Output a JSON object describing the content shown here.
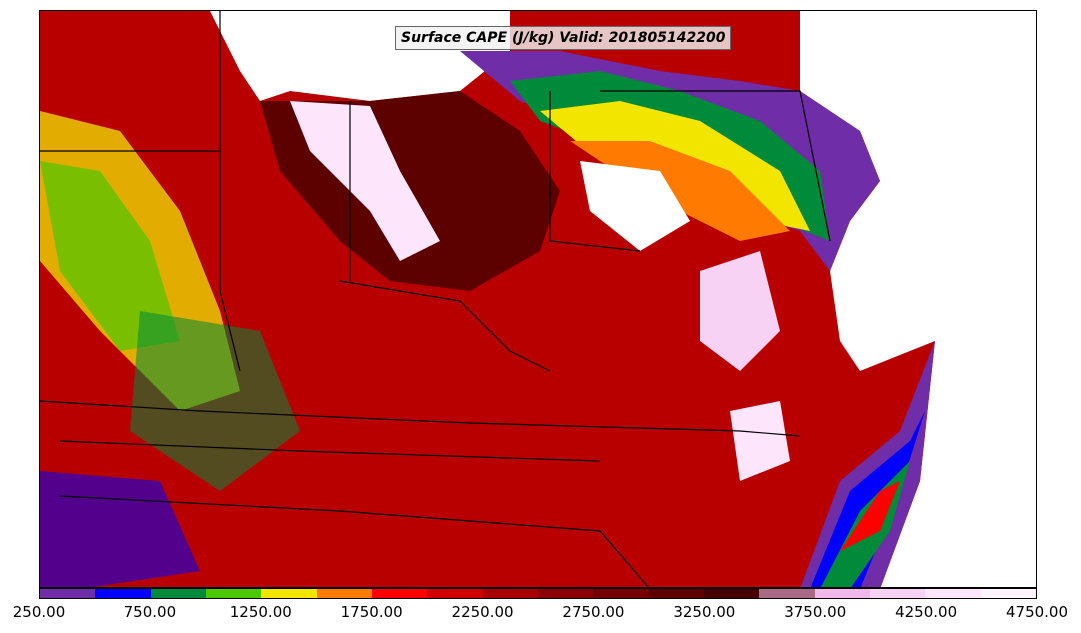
{
  "title": "Surface CAPE (J/kg) Valid: 201805142200",
  "colorbar": {
    "bins": [
      {
        "value": 250,
        "color": "#6f2da8"
      },
      {
        "value": 500,
        "color": "#0000ff"
      },
      {
        "value": 750,
        "color": "#008a3a"
      },
      {
        "value": 1000,
        "color": "#4cc800"
      },
      {
        "value": 1250,
        "color": "#f2e600"
      },
      {
        "value": 1500,
        "color": "#ff7a00"
      },
      {
        "value": 1750,
        "color": "#ff0000"
      },
      {
        "value": 2000,
        "color": "#d00000"
      },
      {
        "value": 2250,
        "color": "#a80000"
      },
      {
        "value": 2500,
        "color": "#8c0000"
      },
      {
        "value": 2750,
        "color": "#740000"
      },
      {
        "value": 3000,
        "color": "#5c0000"
      },
      {
        "value": 3250,
        "color": "#460000"
      },
      {
        "value": 3500,
        "color": "#a86a84"
      },
      {
        "value": 3750,
        "color": "#f2b8ec"
      },
      {
        "value": 4000,
        "color": "#f8d2f4"
      },
      {
        "value": 4250,
        "color": "#fde6fb"
      },
      {
        "value": 4500,
        "color": "#fff4fd"
      }
    ],
    "tick_labels": [
      "250.00",
      "750.00",
      "1250.00",
      "1750.00",
      "2250.00",
      "2750.00",
      "3250.00",
      "3750.00",
      "4250.00",
      "4750.00"
    ]
  }
}
